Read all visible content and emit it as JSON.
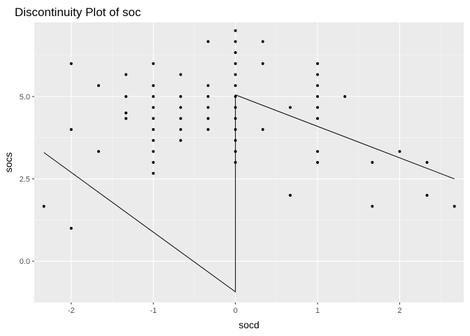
{
  "chart_data": {
    "type": "scatter",
    "title": "Discontinuity Plot of soc",
    "xlabel": "socd",
    "ylabel": "socs",
    "xlim": [
      -2.45,
      2.78
    ],
    "ylim": [
      -1.25,
      7.25
    ],
    "x_ticks": [
      -2,
      -1,
      0,
      1,
      2
    ],
    "x_tick_labels": [
      "-2",
      "-1",
      "0",
      "1",
      "2"
    ],
    "y_ticks": [
      0,
      2.5,
      5
    ],
    "y_tick_labels": [
      "0.0",
      "2.5",
      "5.0"
    ],
    "x_minor_ticks": [
      -1.5,
      -0.5,
      0.5,
      1.5,
      2.5
    ],
    "y_minor_ticks": [
      -1.25,
      1.25,
      3.75,
      6.25
    ],
    "grid": true,
    "legend": "none",
    "colors": {
      "panel": "#ebebeb",
      "grid_major": "#ffffff",
      "grid_minor": "#f5f5f5",
      "point": "#000000",
      "line": "#000000",
      "tick_label": "#4d4d4d"
    },
    "points": [
      {
        "x": -2.333,
        "y": 1.667
      },
      {
        "x": -2.0,
        "y": 6.0
      },
      {
        "x": -2.0,
        "y": 4.0
      },
      {
        "x": -2.0,
        "y": 1.0
      },
      {
        "x": -1.667,
        "y": 5.333
      },
      {
        "x": -1.667,
        "y": 3.333
      },
      {
        "x": -1.333,
        "y": 5.667
      },
      {
        "x": -1.333,
        "y": 5.0
      },
      {
        "x": -1.333,
        "y": 4.5
      },
      {
        "x": -1.333,
        "y": 4.333
      },
      {
        "x": -1.0,
        "y": 6.0
      },
      {
        "x": -1.0,
        "y": 5.333
      },
      {
        "x": -1.0,
        "y": 5.0
      },
      {
        "x": -1.0,
        "y": 4.667
      },
      {
        "x": -1.0,
        "y": 4.333
      },
      {
        "x": -1.0,
        "y": 4.0
      },
      {
        "x": -1.0,
        "y": 3.667
      },
      {
        "x": -1.0,
        "y": 3.333
      },
      {
        "x": -1.0,
        "y": 3.0
      },
      {
        "x": -1.0,
        "y": 2.667
      },
      {
        "x": -0.667,
        "y": 5.667
      },
      {
        "x": -0.667,
        "y": 5.0
      },
      {
        "x": -0.667,
        "y": 4.667
      },
      {
        "x": -0.667,
        "y": 4.333
      },
      {
        "x": -0.667,
        "y": 4.0
      },
      {
        "x": -0.667,
        "y": 3.667
      },
      {
        "x": -0.333,
        "y": 6.667
      },
      {
        "x": -0.333,
        "y": 5.333
      },
      {
        "x": -0.333,
        "y": 5.0
      },
      {
        "x": -0.333,
        "y": 4.667
      },
      {
        "x": -0.333,
        "y": 4.333
      },
      {
        "x": -0.333,
        "y": 4.0
      },
      {
        "x": 0.0,
        "y": 7.0
      },
      {
        "x": 0.0,
        "y": 6.667
      },
      {
        "x": 0.0,
        "y": 6.333
      },
      {
        "x": 0.0,
        "y": 6.0
      },
      {
        "x": 0.0,
        "y": 5.667
      },
      {
        "x": 0.0,
        "y": 5.333
      },
      {
        "x": 0.0,
        "y": 5.0
      },
      {
        "x": 0.0,
        "y": 4.667
      },
      {
        "x": 0.0,
        "y": 4.333
      },
      {
        "x": 0.0,
        "y": 4.0
      },
      {
        "x": 0.0,
        "y": 3.667
      },
      {
        "x": 0.0,
        "y": 3.333
      },
      {
        "x": 0.0,
        "y": 3.0
      },
      {
        "x": 0.333,
        "y": 6.667
      },
      {
        "x": 0.333,
        "y": 6.0
      },
      {
        "x": 0.333,
        "y": 4.0
      },
      {
        "x": 0.667,
        "y": 4.667
      },
      {
        "x": 0.667,
        "y": 2.0
      },
      {
        "x": 1.0,
        "y": 6.0
      },
      {
        "x": 1.0,
        "y": 5.667
      },
      {
        "x": 1.0,
        "y": 5.333
      },
      {
        "x": 1.0,
        "y": 5.0
      },
      {
        "x": 1.0,
        "y": 4.667
      },
      {
        "x": 1.0,
        "y": 4.333
      },
      {
        "x": 1.0,
        "y": 3.333
      },
      {
        "x": 1.0,
        "y": 3.0
      },
      {
        "x": 1.333,
        "y": 5.0
      },
      {
        "x": 1.667,
        "y": 3.0
      },
      {
        "x": 1.667,
        "y": 1.667
      },
      {
        "x": 2.0,
        "y": 3.333
      },
      {
        "x": 2.333,
        "y": 3.0
      },
      {
        "x": 2.333,
        "y": 2.0
      },
      {
        "x": 2.667,
        "y": 1.667
      }
    ],
    "fit_line": [
      {
        "x": -2.333,
        "y": 3.3
      },
      {
        "x": 0.0,
        "y": -0.93
      },
      {
        "x": 0.0,
        "y": 5.05
      },
      {
        "x": 2.667,
        "y": 2.5
      }
    ]
  }
}
